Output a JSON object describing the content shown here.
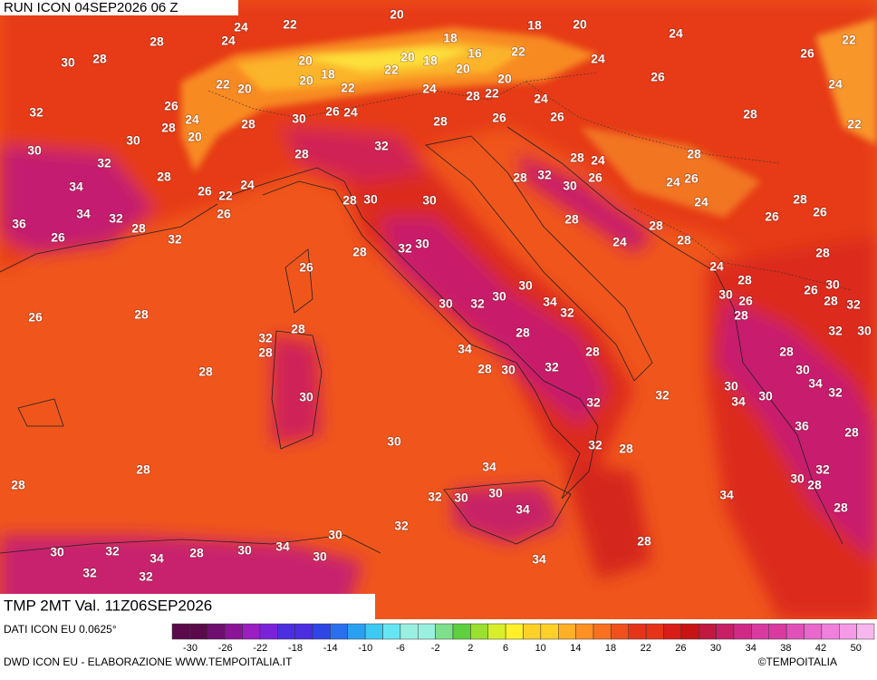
{
  "header": {
    "run": "RUN ICON 04SEP2026 06 Z"
  },
  "map": {
    "labels": [
      20,
      22,
      24,
      18,
      20,
      24,
      22,
      28,
      24,
      18,
      30,
      28,
      20,
      20,
      18,
      16,
      22,
      24,
      20,
      26,
      22,
      18,
      20,
      26,
      20,
      22,
      20,
      22,
      24,
      28,
      22,
      24,
      24,
      32,
      26,
      24,
      28,
      28,
      30,
      26,
      24,
      28,
      26,
      26,
      28,
      22,
      30,
      20,
      32,
      30,
      32,
      28,
      28,
      24,
      28,
      28,
      28,
      32,
      30,
      26,
      24,
      26,
      34,
      26,
      22,
      24,
      28,
      30,
      30,
      24,
      28,
      36,
      34,
      32,
      28,
      26,
      28,
      28,
      26,
      26,
      26,
      32,
      32,
      30,
      24,
      28,
      28,
      28,
      26,
      24,
      28,
      30,
      30,
      32,
      30,
      34,
      30,
      26,
      26,
      30,
      28,
      32,
      32,
      28,
      26,
      28,
      28,
      32,
      28,
      32,
      30,
      28,
      34,
      28,
      28,
      28,
      28,
      30,
      32,
      30,
      34,
      32,
      30,
      34,
      30,
      30,
      32,
      32,
      36,
      28,
      30,
      32,
      28,
      28,
      34,
      32,
      30,
      28,
      28,
      32,
      30,
      30,
      34,
      34,
      28,
      32,
      30,
      28,
      30,
      32,
      34,
      28,
      30,
      34,
      30,
      34,
      32,
      32
    ]
  },
  "footer": {
    "title": "TMP 2MT Val. 11Z06SEP2026",
    "data_source": "DATI ICON EU 0.0625°",
    "credit": "DWD ICON EU - ELABORAZIONE WWW.TEMPOITALIA.IT",
    "brand": "©TEMPOITALIA",
    "scale_ticks": [
      -30,
      -26,
      -22,
      -18,
      -14,
      -10,
      -6,
      -2,
      2,
      6,
      10,
      14,
      18,
      22,
      26,
      30,
      34,
      38,
      42,
      50
    ]
  }
}
